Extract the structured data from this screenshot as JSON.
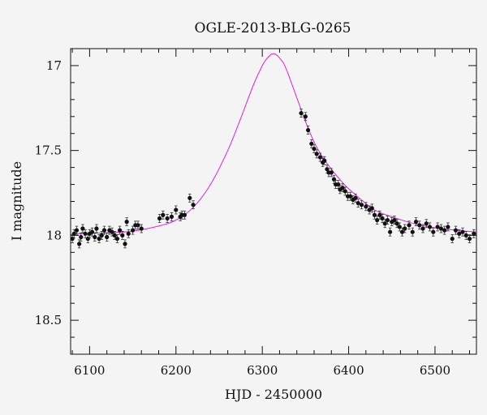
{
  "chart_data": {
    "type": "scatter",
    "title": "OGLE-2013-BLG-0265",
    "xlabel": "HJD - 2450000",
    "ylabel": "I magnitude",
    "xlim": [
      6078,
      6548
    ],
    "ylim": [
      18.7,
      16.9
    ],
    "y_axis_inverted": true,
    "grid": false,
    "x_ticks": [
      {
        "value": 6100,
        "label": "6100"
      },
      {
        "value": 6200,
        "label": "6200"
      },
      {
        "value": 6300,
        "label": "6300"
      },
      {
        "value": 6400,
        "label": "6400"
      },
      {
        "value": 6500,
        "label": "6500"
      }
    ],
    "y_ticks": [
      {
        "value": 17.0,
        "label": "17"
      },
      {
        "value": 17.5,
        "label": "17.5"
      },
      {
        "value": 18.0,
        "label": "18"
      },
      {
        "value": 18.5,
        "label": "18.5"
      }
    ],
    "model": {
      "type": "line",
      "color": "#e020e0",
      "x": [
        6080,
        6120,
        6150,
        6180,
        6200,
        6220,
        6240,
        6260,
        6275,
        6290,
        6300,
        6305,
        6310,
        6313,
        6316,
        6320,
        6325,
        6330,
        6340,
        6350,
        6360,
        6370,
        6380,
        6395,
        6410,
        6430,
        6450,
        6475,
        6500,
        6525,
        6548
      ],
      "y": [
        17.99,
        17.985,
        17.975,
        17.945,
        17.91,
        17.835,
        17.7,
        17.5,
        17.31,
        17.11,
        17.0,
        16.96,
        16.935,
        16.93,
        16.935,
        16.955,
        16.99,
        17.05,
        17.19,
        17.33,
        17.45,
        17.54,
        17.61,
        17.7,
        17.77,
        17.85,
        17.89,
        17.93,
        17.955,
        17.97,
        17.98
      ]
    },
    "series": [
      {
        "x": [
          6080,
          6082,
          6085,
          6088,
          6090,
          6092,
          6095,
          6098,
          6100,
          6103,
          6106,
          6108,
          6111,
          6114,
          6117,
          6120,
          6123,
          6126,
          6129,
          6132,
          6135,
          6138,
          6141,
          6143,
          6145,
          6150,
          6153,
          6156,
          6160,
          6181,
          6185,
          6190,
          6195,
          6200,
          6205,
          6207,
          6210,
          6216,
          6220,
          6345,
          6350,
          6353,
          6357,
          6360,
          6363,
          6367,
          6370,
          6372,
          6375,
          6377,
          6380,
          6383,
          6385,
          6388,
          6390,
          6393,
          6396,
          6399,
          6402,
          6405,
          6408,
          6411,
          6415,
          6420,
          6424,
          6427,
          6430,
          6433,
          6436,
          6439,
          6442,
          6445,
          6448,
          6450,
          6453,
          6456,
          6459,
          6462,
          6465,
          6470,
          6474,
          6478,
          6482,
          6486,
          6490,
          6494,
          6498,
          6503,
          6507,
          6511,
          6515,
          6520,
          6524,
          6528,
          6532,
          6536,
          6540,
          6545
        ],
        "y": [
          18.02,
          17.99,
          17.97,
          18.05,
          18.01,
          17.96,
          17.99,
          18.02,
          17.99,
          17.98,
          18.01,
          17.96,
          18.02,
          18.0,
          17.97,
          18.01,
          17.97,
          17.98,
          18.0,
          18.02,
          17.97,
          18.0,
          18.05,
          17.92,
          17.99,
          17.97,
          17.94,
          17.94,
          17.96,
          17.9,
          17.88,
          17.9,
          17.89,
          17.85,
          17.89,
          17.88,
          17.88,
          17.78,
          17.82,
          17.28,
          17.3,
          17.38,
          17.46,
          17.49,
          17.52,
          17.54,
          17.57,
          17.56,
          17.61,
          17.63,
          17.63,
          17.67,
          17.7,
          17.7,
          17.73,
          17.72,
          17.74,
          17.77,
          17.77,
          17.79,
          17.78,
          17.81,
          17.82,
          17.83,
          17.85,
          17.84,
          17.88,
          17.91,
          17.88,
          17.9,
          17.93,
          17.91,
          17.98,
          17.92,
          17.91,
          17.93,
          17.95,
          17.98,
          17.96,
          17.94,
          17.98,
          17.92,
          17.94,
          17.96,
          17.93,
          17.95,
          17.98,
          17.95,
          17.96,
          17.97,
          17.95,
          18.02,
          17.97,
          17.99,
          17.98,
          18.0,
          18.02,
          17.99
        ]
      }
    ]
  }
}
